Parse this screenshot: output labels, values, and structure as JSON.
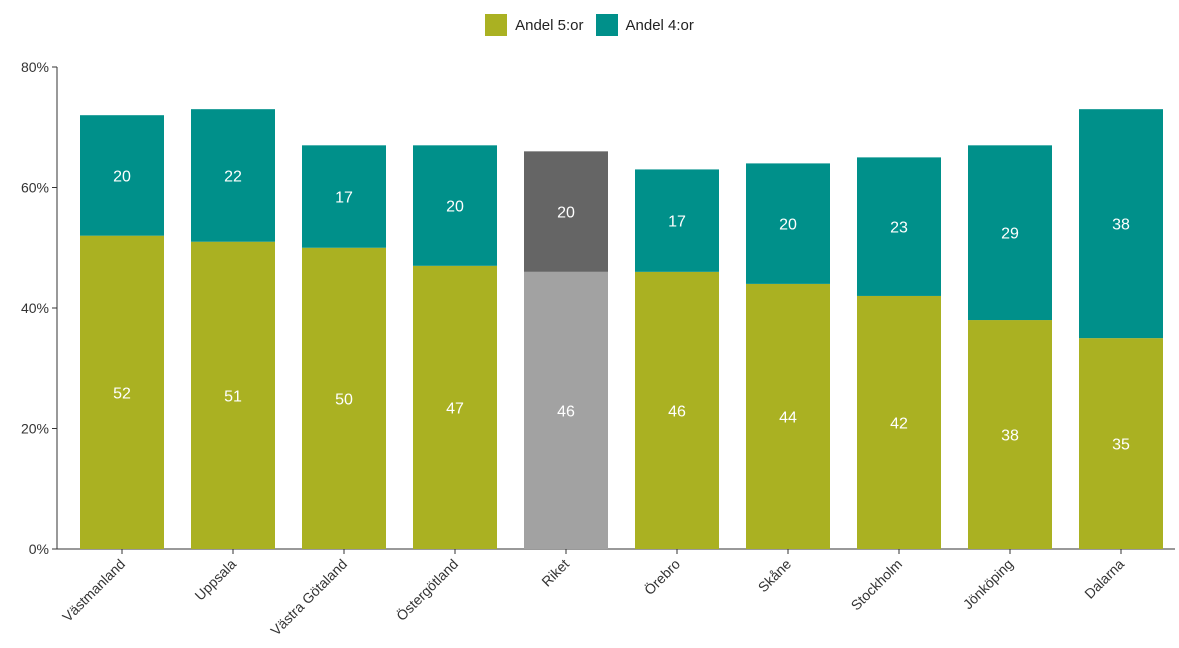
{
  "chart_data": {
    "type": "bar",
    "stacked": true,
    "legend_position": "top-center",
    "grid": false,
    "xlabel": "",
    "ylabel": "",
    "ylim": [
      0,
      80
    ],
    "yticks": [
      "0%",
      "20%",
      "40%",
      "60%",
      "80%"
    ],
    "categories": [
      "Västmanland",
      "Uppsala",
      "Västra Götaland",
      "Östergötland",
      "Riket",
      "Örebro",
      "Skåne",
      "Stockholm",
      "Jönköping",
      "Dalarna"
    ],
    "series": [
      {
        "name": "Andel 5:or",
        "values": [
          52,
          51,
          50,
          47,
          46,
          46,
          44,
          42,
          38,
          35
        ],
        "labels": [
          "52",
          "51",
          "50",
          "47",
          "46",
          "46",
          "44",
          "42",
          "38",
          "35"
        ]
      },
      {
        "name": "Andel 4:or",
        "values": [
          20,
          22,
          17,
          20,
          20,
          17,
          20,
          23,
          29,
          38
        ],
        "labels": [
          "20",
          "22",
          "17",
          "20",
          "20",
          "17",
          "20",
          "23",
          "29",
          "38"
        ]
      }
    ],
    "highlight_category": "Riket"
  },
  "colors": {
    "series": [
      "#aab122",
      "#00908a"
    ],
    "highlight": [
      "#a2a2a2",
      "#656565"
    ],
    "axis": "#333333",
    "label_text": "#ffffff"
  }
}
